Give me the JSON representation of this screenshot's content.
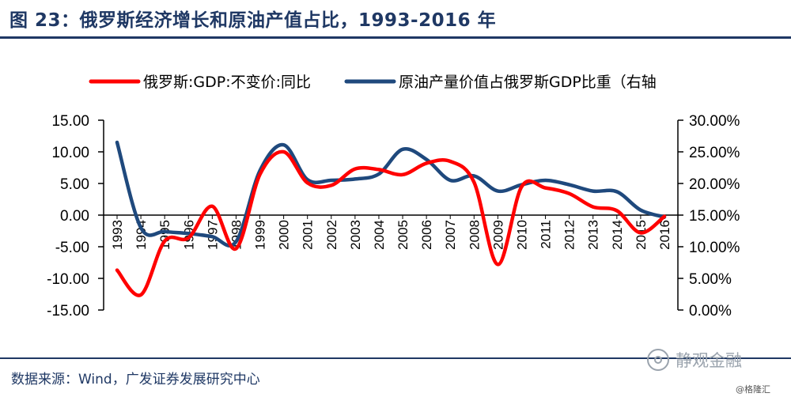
{
  "header": {
    "title": "图 23：俄罗斯经济增长和原油产值占比，1993-2016 年"
  },
  "footer": {
    "source": "数据来源：Wind，广发证券发展研究中心",
    "watermark": "静观金融",
    "corner_mark": "@格隆汇"
  },
  "chart_data": {
    "type": "line",
    "categories": [
      "1993",
      "1994",
      "1995",
      "1996",
      "1997",
      "1998",
      "1999",
      "2000",
      "2001",
      "2002",
      "2003",
      "2004",
      "2005",
      "2006",
      "2007",
      "2008",
      "2009",
      "2010",
      "2011",
      "2012",
      "2013",
      "2014",
      "2015",
      "2016"
    ],
    "series": [
      {
        "name": "俄罗斯:GDP:不变价:同比",
        "axis": "left",
        "color": "#ff0000",
        "values": [
          -8.7,
          -12.6,
          -4.1,
          -3.6,
          1.4,
          -5.3,
          6.4,
          10.0,
          5.1,
          4.7,
          7.3,
          7.2,
          6.4,
          8.2,
          8.5,
          5.2,
          -7.8,
          4.5,
          4.3,
          3.4,
          1.3,
          0.7,
          -2.8,
          -0.2
        ]
      },
      {
        "name": "原油产量价值占俄罗斯GDP比重（右轴",
        "axis": "right",
        "color": "#1f497d",
        "values": [
          0.265,
          0.13,
          0.124,
          0.121,
          0.116,
          0.108,
          0.22,
          0.261,
          0.206,
          0.205,
          0.207,
          0.215,
          0.254,
          0.238,
          0.205,
          0.212,
          0.188,
          0.198,
          0.205,
          0.198,
          0.188,
          0.187,
          0.158,
          0.147
        ]
      }
    ],
    "left_axis": {
      "ylim": [
        -15,
        15
      ],
      "ticks": [
        15,
        10,
        5,
        0,
        -5,
        -10,
        -15
      ],
      "tick_labels": [
        "15.00",
        "10.00",
        "5.00",
        "0.00",
        "-5.00",
        "-10.00",
        "-15.00"
      ]
    },
    "right_axis": {
      "ylim": [
        0,
        0.3
      ],
      "ticks": [
        0.3,
        0.25,
        0.2,
        0.15,
        0.1,
        0.05,
        0.0
      ],
      "tick_labels": [
        "30.00%",
        "25.00%",
        "20.00%",
        "15.00%",
        "10.00%",
        "5.00%",
        "0.00%"
      ]
    },
    "xlabel": "",
    "ylabel": "",
    "grid": false,
    "legend_position": "top"
  }
}
